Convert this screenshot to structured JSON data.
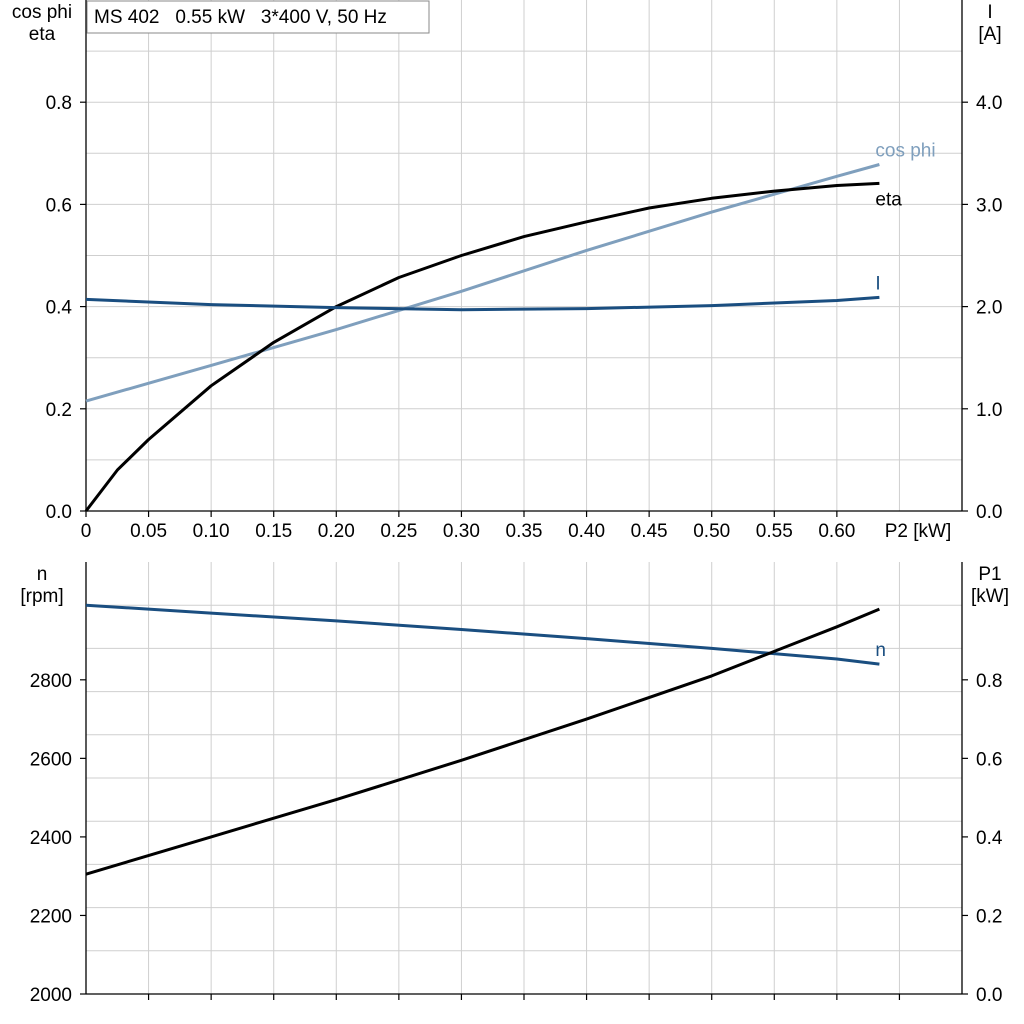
{
  "chart_data": [
    {
      "type": "line",
      "title": "MS 402   0.55 kW   3*400 V, 50 Hz",
      "xlabel": "P2 [kW]",
      "xlim": [
        0,
        0.7
      ],
      "xticks": [
        0,
        0.05,
        0.1,
        0.15,
        0.2,
        0.25,
        0.3,
        0.35,
        0.4,
        0.45,
        0.5,
        0.55,
        0.6
      ],
      "xtick_labels": [
        "0",
        "0.05",
        "0.10",
        "0.15",
        "0.20",
        "0.25",
        "0.30",
        "0.35",
        "0.40",
        "0.45",
        "0.50",
        "0.55",
        "0.60"
      ],
      "ylabel_left": [
        "cos phi",
        "eta"
      ],
      "ylim_left": [
        0,
        1.0
      ],
      "yticks_left": [
        "0.0",
        "0.2",
        "0.4",
        "0.6",
        "0.8"
      ],
      "ylabel_right": [
        "I",
        "[A]"
      ],
      "ylim_right": [
        0,
        5.0
      ],
      "yticks_right": [
        "0.0",
        "1.0",
        "2.0",
        "3.0",
        "4.0"
      ],
      "grid": true,
      "series": [
        {
          "name": "cos phi",
          "axis": "left",
          "color": "#7f9fbd",
          "x": [
            0,
            0.1,
            0.2,
            0.3,
            0.4,
            0.5,
            0.6,
            0.634
          ],
          "y": [
            0.215,
            0.285,
            0.355,
            0.43,
            0.51,
            0.585,
            0.655,
            0.678
          ]
        },
        {
          "name": "eta",
          "axis": "left",
          "color": "#000000",
          "x": [
            0,
            0.025,
            0.05,
            0.1,
            0.15,
            0.2,
            0.25,
            0.3,
            0.35,
            0.4,
            0.45,
            0.5,
            0.55,
            0.6,
            0.634
          ],
          "y": [
            0,
            0.08,
            0.14,
            0.245,
            0.33,
            0.4,
            0.457,
            0.5,
            0.537,
            0.566,
            0.593,
            0.612,
            0.626,
            0.637,
            0.641
          ]
        },
        {
          "name": "I",
          "axis": "right",
          "color": "#1a4e80",
          "x": [
            0,
            0.1,
            0.2,
            0.3,
            0.4,
            0.5,
            0.6,
            0.634
          ],
          "y": [
            2.07,
            2.02,
            1.99,
            1.97,
            1.98,
            2.01,
            2.06,
            2.09
          ]
        }
      ]
    },
    {
      "type": "line",
      "xlim": [
        0,
        0.7
      ],
      "ylabel_left": [
        "n",
        "[rpm]"
      ],
      "ylim_left": [
        2000,
        3100
      ],
      "yticks_left": [
        "2000",
        "2200",
        "2400",
        "2600",
        "2800"
      ],
      "ylabel_right": [
        "P1",
        "[kW]"
      ],
      "ylim_right": [
        0,
        1.1
      ],
      "yticks_right": [
        "0.0",
        "0.2",
        "0.4",
        "0.6",
        "0.8"
      ],
      "grid": true,
      "series": [
        {
          "name": "n",
          "axis": "left",
          "color": "#1a4e80",
          "x": [
            0,
            0.1,
            0.2,
            0.3,
            0.4,
            0.5,
            0.6,
            0.634
          ],
          "y": [
            2990,
            2970,
            2950,
            2928,
            2905,
            2880,
            2853,
            2840
          ]
        },
        {
          "name": "",
          "axis": "right",
          "color": "#000000",
          "x": [
            0,
            0.1,
            0.2,
            0.3,
            0.4,
            0.5,
            0.6,
            0.634
          ],
          "y": [
            0.305,
            0.4,
            0.495,
            0.595,
            0.7,
            0.81,
            0.935,
            0.98
          ]
        }
      ]
    }
  ]
}
